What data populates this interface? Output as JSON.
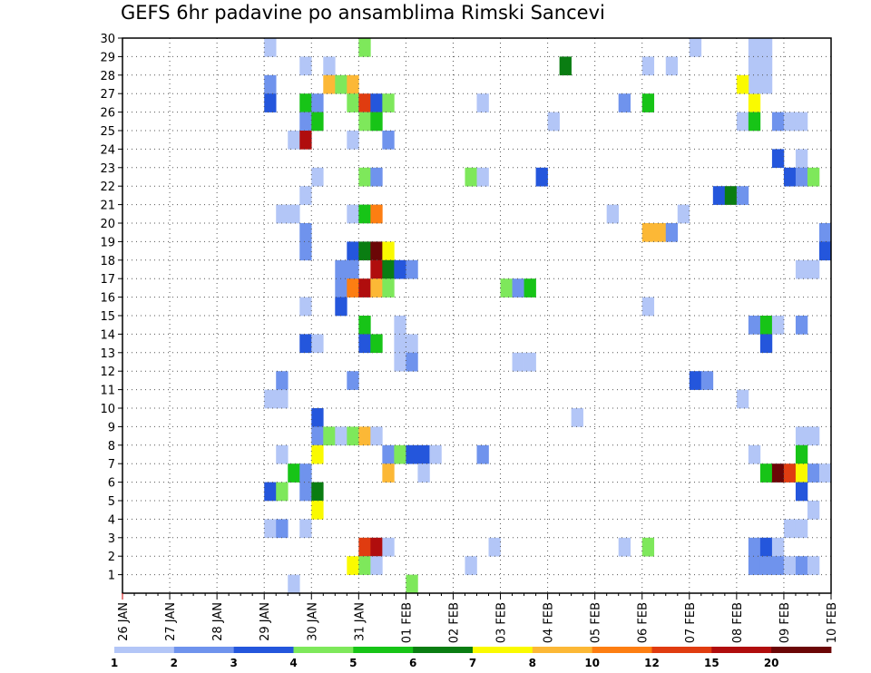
{
  "chart_data": {
    "type": "heatmap",
    "title": "GEFS 6hr padavine po ansamblima Rimski Sancevi",
    "xlabel": "",
    "ylabel": "",
    "x_tick_labels": [
      "26 JAN",
      "27 JAN",
      "28 JAN",
      "29 JAN",
      "30 JAN",
      "31 JAN",
      "01 FEB",
      "02 FEB",
      "03 FEB",
      "04 FEB",
      "05 FEB",
      "06 FEB",
      "07 FEB",
      "08 FEB",
      "09 FEB",
      "10 FEB"
    ],
    "y_tick_labels": [
      "1",
      "2",
      "3",
      "4",
      "5",
      "6",
      "7",
      "8",
      "9",
      "10",
      "11",
      "12",
      "13",
      "14",
      "15",
      "16",
      "17",
      "18",
      "19",
      "20",
      "21",
      "22",
      "23",
      "24",
      "25",
      "26",
      "27",
      "28",
      "29",
      "30"
    ],
    "x_axis_unit": "6-hour step from 26 JAN 00Z",
    "xlim_steps": [
      0,
      60
    ],
    "ylim_members": [
      0,
      30
    ],
    "grid": true,
    "legend": {
      "placement": "bottom",
      "tick_labels": [
        "1",
        "2",
        "3",
        "4",
        "5",
        "6",
        "7",
        "8",
        "10",
        "12",
        "15",
        "20"
      ],
      "colors": [
        "#b3c6f7",
        "#6f93ed",
        "#2456dc",
        "#7ee85b",
        "#17c417",
        "#0a7d12",
        "#fafa00",
        "#fcb836",
        "#fd7e12",
        "#e03c10",
        "#b00d0d",
        "#6b0606"
      ]
    },
    "cells": [
      [
        12,
        30,
        0
      ],
      [
        20,
        30,
        3
      ],
      [
        48,
        30,
        0
      ],
      [
        15,
        29,
        0
      ],
      [
        17,
        29,
        0
      ],
      [
        37,
        29,
        5
      ],
      [
        44,
        29,
        0
      ],
      [
        46,
        29,
        0
      ],
      [
        12,
        28,
        1
      ],
      [
        17,
        28,
        7
      ],
      [
        18,
        28,
        3
      ],
      [
        19,
        28,
        7
      ],
      [
        12,
        27,
        2
      ],
      [
        15,
        27,
        4
      ],
      [
        16,
        27,
        1
      ],
      [
        19,
        27,
        3
      ],
      [
        20,
        27,
        9
      ],
      [
        21,
        27,
        2
      ],
      [
        22,
        27,
        3
      ],
      [
        30,
        27,
        0
      ],
      [
        42,
        27,
        1
      ],
      [
        44,
        27,
        4
      ],
      [
        15,
        26,
        1
      ],
      [
        16,
        26,
        4
      ],
      [
        20,
        26,
        3
      ],
      [
        21,
        26,
        4
      ],
      [
        36,
        26,
        0
      ],
      [
        14,
        25,
        0
      ],
      [
        15,
        25,
        10
      ],
      [
        19,
        25,
        0
      ],
      [
        22,
        25,
        1
      ],
      [
        16,
        23,
        0
      ],
      [
        20,
        23,
        3
      ],
      [
        21,
        23,
        1
      ],
      [
        29,
        23,
        3
      ],
      [
        30,
        23,
        0
      ],
      [
        35,
        23,
        2
      ],
      [
        15,
        22,
        0
      ],
      [
        50,
        22,
        2
      ],
      [
        51,
        22,
        5
      ],
      [
        52,
        22,
        1
      ],
      [
        13,
        21,
        0
      ],
      [
        14,
        21,
        0
      ],
      [
        19,
        21,
        0
      ],
      [
        20,
        21,
        4
      ],
      [
        21,
        21,
        8
      ],
      [
        41,
        21,
        0
      ],
      [
        47,
        21,
        0
      ],
      [
        15,
        20,
        1
      ],
      [
        44,
        20,
        7
      ],
      [
        45,
        20,
        7
      ],
      [
        46,
        20,
        1
      ],
      [
        15,
        19,
        1
      ],
      [
        19,
        19,
        2
      ],
      [
        20,
        19,
        5
      ],
      [
        21,
        19,
        11
      ],
      [
        22,
        19,
        6
      ],
      [
        18,
        18,
        1
      ],
      [
        19,
        18,
        1
      ],
      [
        21,
        18,
        10
      ],
      [
        22,
        18,
        5
      ],
      [
        23,
        18,
        2
      ],
      [
        24,
        18,
        1
      ],
      [
        18,
        17,
        1
      ],
      [
        19,
        17,
        8
      ],
      [
        20,
        17,
        10
      ],
      [
        21,
        17,
        7
      ],
      [
        22,
        17,
        3
      ],
      [
        32,
        17,
        3
      ],
      [
        33,
        17,
        1
      ],
      [
        34,
        17,
        4
      ],
      [
        15,
        16,
        0
      ],
      [
        18,
        16,
        2
      ],
      [
        44,
        16,
        0
      ],
      [
        20,
        15,
        4
      ],
      [
        23,
        15,
        0
      ],
      [
        15,
        14,
        2
      ],
      [
        16,
        14,
        0
      ],
      [
        20,
        14,
        2
      ],
      [
        21,
        14,
        4
      ],
      [
        23,
        14,
        0
      ],
      [
        24,
        14,
        0
      ],
      [
        23,
        13,
        0
      ],
      [
        24,
        13,
        1
      ],
      [
        33,
        13,
        0
      ],
      [
        34,
        13,
        0
      ],
      [
        13,
        12,
        1
      ],
      [
        19,
        12,
        1
      ],
      [
        48,
        12,
        2
      ],
      [
        49,
        12,
        1
      ],
      [
        12,
        11,
        0
      ],
      [
        13,
        11,
        0
      ],
      [
        52,
        11,
        0
      ],
      [
        16,
        10,
        2
      ],
      [
        38,
        10,
        0
      ],
      [
        16,
        9,
        1
      ],
      [
        17,
        9,
        3
      ],
      [
        18,
        9,
        0
      ],
      [
        19,
        9,
        3
      ],
      [
        20,
        9,
        7
      ],
      [
        21,
        9,
        0
      ],
      [
        13,
        8,
        0
      ],
      [
        16,
        8,
        6
      ],
      [
        22,
        8,
        1
      ],
      [
        23,
        8,
        3
      ],
      [
        24,
        8,
        2
      ],
      [
        25,
        8,
        2
      ],
      [
        26,
        8,
        0
      ],
      [
        30,
        8,
        1
      ],
      [
        14,
        7,
        4
      ],
      [
        15,
        7,
        1
      ],
      [
        22,
        7,
        7
      ],
      [
        25,
        7,
        0
      ],
      [
        12,
        6,
        2
      ],
      [
        13,
        6,
        3
      ],
      [
        15,
        6,
        1
      ],
      [
        16,
        6,
        5
      ],
      [
        16,
        5,
        6
      ],
      [
        12,
        4,
        0
      ],
      [
        13,
        4,
        1
      ],
      [
        15,
        4,
        0
      ],
      [
        20,
        3,
        9
      ],
      [
        21,
        3,
        10
      ],
      [
        22,
        3,
        0
      ],
      [
        31,
        3,
        0
      ],
      [
        42,
        3,
        0
      ],
      [
        44,
        3,
        3
      ],
      [
        19,
        2,
        6
      ],
      [
        20,
        2,
        3
      ],
      [
        21,
        2,
        0
      ],
      [
        29,
        2,
        0
      ],
      [
        14,
        1,
        0
      ],
      [
        24,
        1,
        3
      ],
      [
        53,
        27,
        6
      ],
      [
        52,
        26,
        0
      ],
      [
        53,
        26,
        4
      ],
      [
        55,
        26,
        1
      ],
      [
        56,
        26,
        0
      ],
      [
        57,
        26,
        0
      ],
      [
        55,
        24,
        2
      ],
      [
        57,
        24,
        0
      ],
      [
        56,
        23,
        2
      ],
      [
        57,
        23,
        1
      ],
      [
        58,
        23,
        3
      ],
      [
        59,
        20,
        1
      ],
      [
        59,
        19,
        2
      ],
      [
        57,
        18,
        0
      ],
      [
        58,
        18,
        0
      ],
      [
        53,
        15,
        1
      ],
      [
        54,
        15,
        4
      ],
      [
        55,
        15,
        0
      ],
      [
        57,
        15,
        1
      ],
      [
        54,
        14,
        2
      ],
      [
        53,
        8,
        0
      ],
      [
        57,
        9,
        0
      ],
      [
        58,
        9,
        0
      ],
      [
        57,
        8,
        4
      ],
      [
        54,
        7,
        4
      ],
      [
        55,
        7,
        11
      ],
      [
        56,
        7,
        9
      ],
      [
        57,
        7,
        6
      ],
      [
        58,
        7,
        1
      ],
      [
        59,
        7,
        0
      ],
      [
        57,
        6,
        2
      ],
      [
        58,
        5,
        0
      ],
      [
        56,
        4,
        0
      ],
      [
        57,
        4,
        0
      ],
      [
        53,
        3,
        1
      ],
      [
        54,
        3,
        2
      ],
      [
        55,
        3,
        0
      ],
      [
        53,
        2,
        1
      ],
      [
        54,
        2,
        1
      ],
      [
        55,
        2,
        1
      ],
      [
        56,
        2,
        0
      ],
      [
        57,
        2,
        1
      ],
      [
        58,
        2,
        0
      ],
      [
        53,
        29,
        0
      ],
      [
        54,
        29,
        0
      ],
      [
        53,
        30,
        0
      ],
      [
        54,
        30,
        0
      ],
      [
        53,
        28,
        0
      ],
      [
        54,
        28,
        0
      ],
      [
        52,
        28,
        6
      ]
    ]
  }
}
